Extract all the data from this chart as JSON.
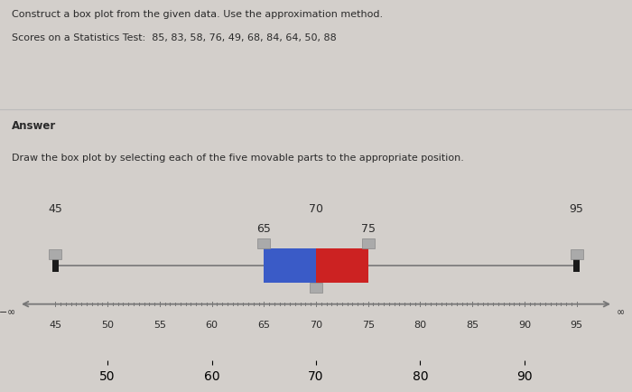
{
  "title_line1": "Construct a box plot from the given data. Use the approximation method.",
  "title_line2": "Scores on a Statistics Test:  85, 83, 58, 76, 49, 68, 84, 64, 50, 88",
  "answer_label": "Answer",
  "instruction": "Draw the box plot by selecting each of the five movable parts to the appropriate position.",
  "min_val": 45,
  "q1": 65,
  "median": 70,
  "q3": 75,
  "max_val": 95,
  "axis_ticks": [
    45,
    50,
    55,
    60,
    65,
    70,
    75,
    80,
    85,
    90,
    95
  ],
  "box_color_left": "#3a5bc7",
  "box_color_right": "#cc2222",
  "bg_color": "#d3cfcb",
  "text_color": "#2a2a2a",
  "line_color": "#777777"
}
